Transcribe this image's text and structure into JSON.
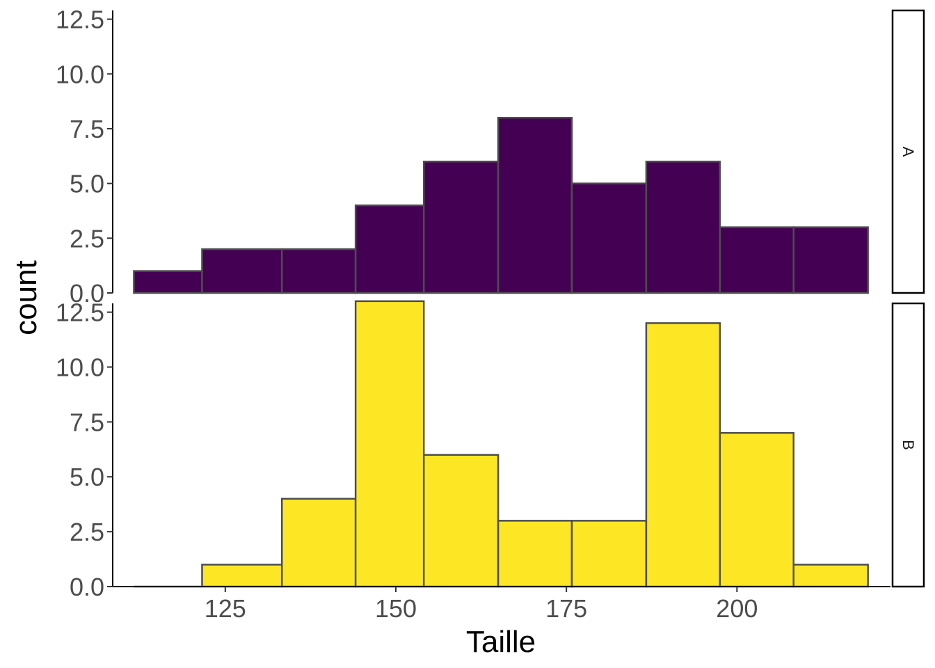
{
  "chart_data": {
    "type": "bar",
    "subtype": "faceted-histogram",
    "xlabel": "Taille",
    "ylabel": "count",
    "xlim": [
      108.5,
      222.5
    ],
    "x_ticks": [
      125,
      150,
      175,
      200
    ],
    "x_tick_labels": [
      "125",
      "150",
      "175",
      "200"
    ],
    "ylim": [
      0,
      12.9
    ],
    "y_ticks": [
      0,
      2.5,
      5,
      7.5,
      10,
      12.5
    ],
    "y_tick_labels": [
      "0.0",
      "2.5",
      "5.0",
      "7.5",
      "10.0",
      "12.5"
    ],
    "bin_edges": [
      111.6,
      121.6,
      133.3,
      144.1,
      154.1,
      165.0,
      175.8,
      186.7,
      197.5,
      208.3,
      219.2
    ],
    "grid": false,
    "legend": "none",
    "facets": [
      {
        "label": "A",
        "fill": "#440154",
        "values": [
          1,
          2,
          2,
          4,
          6,
          8,
          5,
          6,
          3,
          3
        ]
      },
      {
        "label": "B",
        "fill": "#FDE725",
        "values": [
          0,
          1,
          4,
          13,
          6,
          3,
          3,
          12,
          7,
          1
        ]
      }
    ],
    "bar_stroke": "#4d4d4d"
  }
}
